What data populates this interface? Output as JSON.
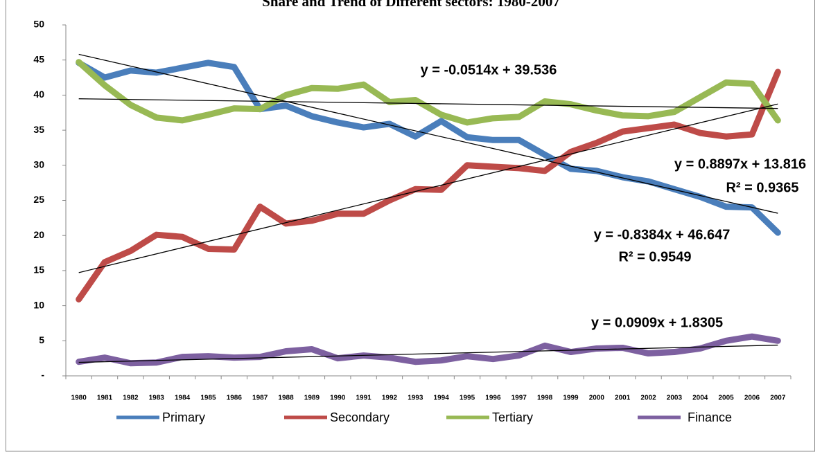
{
  "chart_data": {
    "type": "line",
    "title": "Share and Trend of Different sectors: 1980-2007",
    "categories": [
      "1980",
      "1981",
      "1982",
      "1983",
      "1984",
      "1985",
      "1986",
      "1987",
      "1988",
      "1989",
      "1990",
      "1991",
      "1992",
      "1993",
      "1994",
      "1995",
      "1996",
      "1997",
      "1998",
      "1999",
      "2000",
      "2001",
      "2002",
      "2003",
      "2004",
      "2005",
      "2006",
      "2007"
    ],
    "series": [
      {
        "name": "Primary",
        "color": "#4a7ebb",
        "values": [
          44.6,
          42.5,
          43.5,
          43.2,
          43.9,
          44.6,
          44.0,
          38.0,
          38.5,
          37.0,
          36.1,
          35.4,
          35.9,
          34.1,
          36.3,
          34.0,
          33.6,
          33.6,
          31.5,
          29.5,
          29.2,
          28.3,
          27.7,
          26.6,
          25.5,
          24.1,
          24.0,
          20.4
        ]
      },
      {
        "name": "Secondary",
        "color": "#be4b48",
        "values": [
          10.9,
          16.2,
          17.8,
          20.1,
          19.8,
          18.1,
          18.0,
          24.1,
          21.7,
          22.1,
          23.1,
          23.1,
          25.0,
          26.6,
          26.5,
          30.0,
          29.8,
          29.6,
          29.2,
          31.9,
          33.2,
          34.8,
          35.3,
          35.8,
          34.6,
          34.1,
          34.4,
          43.3
        ]
      },
      {
        "name": "Tertiary",
        "color": "#98b954",
        "values": [
          44.7,
          41.4,
          38.6,
          36.8,
          36.4,
          37.2,
          38.1,
          38.0,
          40.0,
          41.0,
          40.9,
          41.5,
          39.0,
          39.3,
          37.2,
          36.1,
          36.7,
          36.9,
          39.1,
          38.7,
          37.8,
          37.1,
          37.0,
          37.6,
          39.7,
          41.8,
          41.6,
          36.4
        ]
      },
      {
        "name": "Finance",
        "color": "#7d60a0",
        "values": [
          2.0,
          2.6,
          1.8,
          1.9,
          2.7,
          2.8,
          2.6,
          2.7,
          3.5,
          3.8,
          2.5,
          2.9,
          2.6,
          2.0,
          2.2,
          2.8,
          2.4,
          2.9,
          4.3,
          3.4,
          3.9,
          4.0,
          3.2,
          3.4,
          3.9,
          5.0,
          5.6,
          5.0
        ]
      }
    ],
    "trendlines": [
      {
        "label": "y = -0.8384x + 46.647",
        "r2": "R² = 0.9549",
        "values": [
          45.81,
          23.17
        ]
      },
      {
        "label": "y = 0.8897x + 13.816",
        "r2": "R² = 0.9365",
        "values": [
          14.71,
          38.73
        ]
      },
      {
        "label": "y = -0.0514x + 39.536",
        "values": [
          39.48,
          38.1
        ]
      },
      {
        "label": "y = 0.0909x + 1.8305",
        "values": [
          1.92,
          4.38
        ]
      }
    ],
    "ylim": [
      0,
      50
    ],
    "yticks": [
      {
        "value": 0,
        "label": "-"
      },
      5,
      10,
      15,
      20,
      25,
      30,
      35,
      40,
      45,
      50
    ],
    "grid": false,
    "legend": "bottom"
  }
}
